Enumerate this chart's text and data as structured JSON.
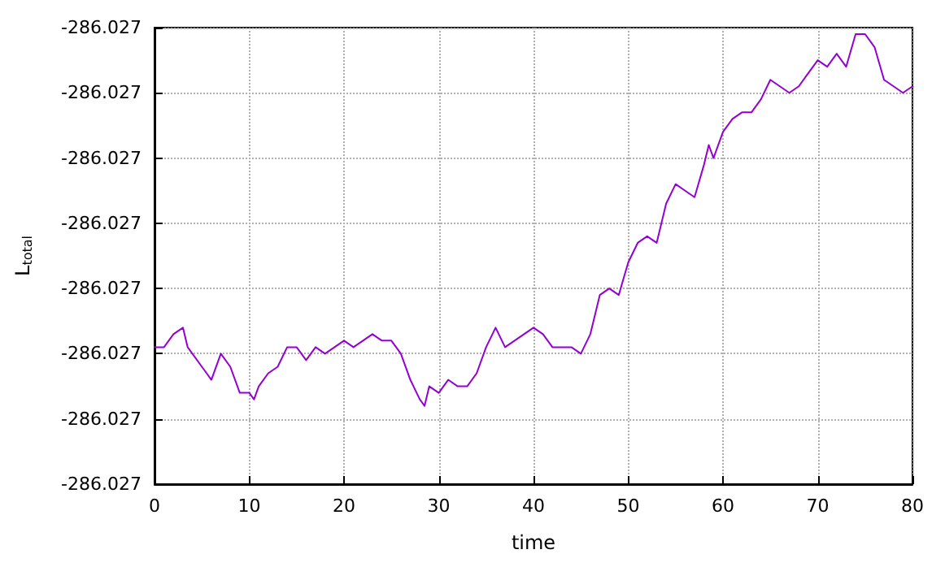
{
  "chart_data": {
    "type": "line",
    "xlabel": "time",
    "ylabel": "L$_{total}$",
    "x": [
      0,
      1,
      2,
      3,
      3.5,
      5,
      6,
      7,
      8,
      9,
      10,
      10.5,
      11,
      12,
      13,
      14,
      15,
      16,
      17,
      18,
      19,
      20,
      21,
      22,
      23,
      24,
      25,
      26,
      27,
      28,
      28.5,
      29,
      30,
      31,
      32,
      33,
      34,
      35,
      36,
      37,
      38,
      39,
      40,
      41,
      42,
      43,
      44,
      45,
      46,
      47,
      48,
      49,
      50,
      51,
      52,
      53,
      54,
      55,
      56,
      57,
      58,
      58.5,
      59,
      60,
      61,
      62,
      63,
      64,
      65,
      66,
      67,
      68,
      69,
      70,
      71,
      72,
      73,
      74,
      75,
      76,
      77,
      78,
      79,
      80
    ],
    "series": [
      {
        "color": "#9400d3",
        "values": [
          -286.02719,
          -286.02719,
          -286.02717,
          -286.02716,
          -286.02719,
          -286.02722,
          -286.02724,
          -286.0272,
          -286.02722,
          -286.02726,
          -286.02726,
          -286.02727,
          -286.02725,
          -286.02723,
          -286.02722,
          -286.02719,
          -286.02719,
          -286.02721,
          -286.02719,
          -286.0272,
          -286.02719,
          -286.02718,
          -286.02719,
          -286.02718,
          -286.02717,
          -286.02718,
          -286.02718,
          -286.0272,
          -286.02724,
          -286.02727,
          -286.02728,
          -286.02725,
          -286.02726,
          -286.02724,
          -286.02725,
          -286.02725,
          -286.02723,
          -286.02719,
          -286.02716,
          -286.02719,
          -286.02718,
          -286.02717,
          -286.02716,
          -286.02717,
          -286.02719,
          -286.02719,
          -286.02719,
          -286.0272,
          -286.02717,
          -286.02711,
          -286.0271,
          -286.02711,
          -286.02706,
          -286.02703,
          -286.02702,
          -286.02703,
          -286.02697,
          -286.02694,
          -286.02695,
          -286.02696,
          -286.02691,
          -286.02688,
          -286.0269,
          -286.02686,
          -286.02684,
          -286.02683,
          -286.02683,
          -286.02681,
          -286.02678,
          -286.02679,
          -286.0268,
          -286.02679,
          -286.02677,
          -286.02675,
          -286.02676,
          -286.02674,
          -286.02676,
          -286.02671,
          -286.02671,
          -286.02673,
          -286.02678,
          -286.02679,
          -286.0268,
          -286.02679
        ]
      }
    ],
    "xlim": [
      0,
      80
    ],
    "xticks": [
      0,
      10,
      20,
      30,
      40,
      50,
      60,
      70,
      80
    ],
    "ylim": [
      -286.0274,
      -286.0267
    ],
    "yticks": [
      {
        "value": -286.0274,
        "label": "-286.027"
      },
      {
        "value": -286.0273,
        "label": "-286.027"
      },
      {
        "value": -286.0272,
        "label": "-286.027"
      },
      {
        "value": -286.0271,
        "label": "-286.027"
      },
      {
        "value": -286.027,
        "label": "-286.027"
      },
      {
        "value": -286.0269,
        "label": "-286.027"
      },
      {
        "value": -286.0268,
        "label": "-286.027"
      },
      {
        "value": -286.0267,
        "label": "-286.027"
      }
    ],
    "grid": true,
    "marker": "none",
    "line_style": "solid"
  }
}
